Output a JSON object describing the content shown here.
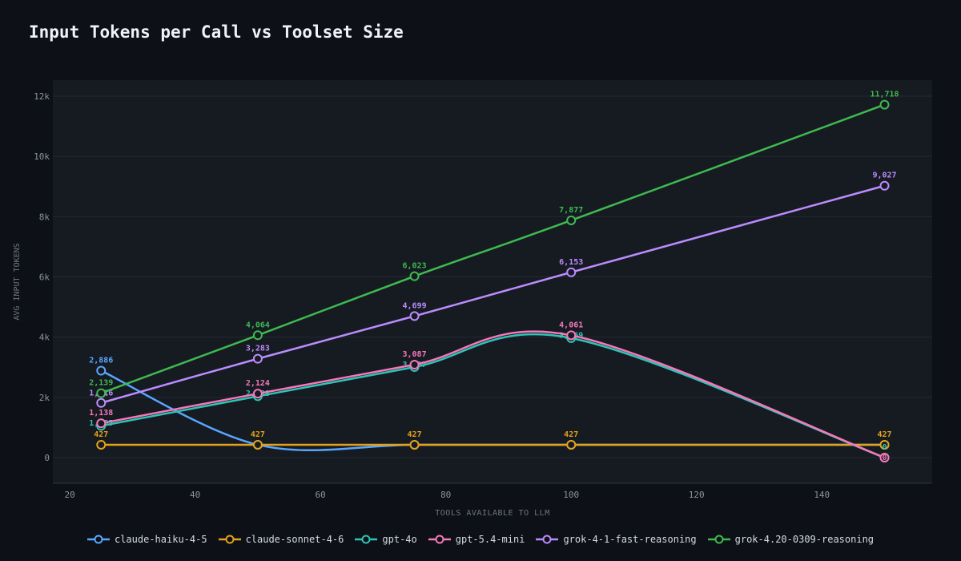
{
  "chart_data": {
    "type": "line",
    "title": "Input Tokens per Call vs Toolset Size",
    "xlabel": "TOOLS AVAILABLE TO LLM",
    "ylabel": "AVG INPUT TOKENS",
    "xlim": [
      17.3,
      157.6
    ],
    "ylim": [
      -851,
      12532
    ],
    "xticks": [
      20,
      40,
      60,
      80,
      100,
      120,
      140
    ],
    "xtick_labels": [
      "20",
      "40",
      "60",
      "80",
      "100",
      "120",
      "140"
    ],
    "yticks": [
      0,
      2000,
      4000,
      6000,
      8000,
      10000,
      12000
    ],
    "ytick_labels": [
      "0",
      "2k",
      "4k",
      "6k",
      "8k",
      "10k",
      "12k"
    ],
    "grid": "horizontal",
    "legend": "bottom",
    "x": [
      25,
      50,
      75,
      100,
      150
    ],
    "series": [
      {
        "name": "claude-haiku-4-5",
        "color": "#58a6ff",
        "values": [
          2886,
          427,
          427,
          427,
          427
        ],
        "labels": [
          "2,886",
          "",
          "",
          "",
          ""
        ]
      },
      {
        "name": "claude-sonnet-4-6",
        "color": "#e3a21a",
        "values": [
          427,
          427,
          427,
          427,
          427
        ],
        "labels": [
          "427",
          "427",
          "427",
          "427",
          "427"
        ]
      },
      {
        "name": "gpt-4o",
        "color": "#2ec4b6",
        "values": [
          1055,
          2038,
          3007,
          3969,
          0
        ],
        "labels": [
          "1,055",
          "2,038",
          "3,007",
          "3,969",
          "0"
        ]
      },
      {
        "name": "gpt-5.4-mini",
        "color": "#f778ba",
        "values": [
          1138,
          2124,
          3087,
          4061,
          0
        ],
        "labels": [
          "1,138",
          "2,124",
          "3,087",
          "4,061",
          "0"
        ]
      },
      {
        "name": "grok-4-1-fast-reasoning",
        "color": "#bc8cff",
        "values": [
          1816,
          3283,
          4699,
          6153,
          9027
        ],
        "labels": [
          "1,816",
          "3,283",
          "4,699",
          "6,153",
          "9,027"
        ]
      },
      {
        "name": "grok-4.20-0309-reasoning",
        "color": "#3fb950",
        "values": [
          2139,
          4064,
          6023,
          7877,
          11718
        ],
        "labels": [
          "2,139",
          "4,064",
          "6,023",
          "7,877",
          "11,718"
        ]
      }
    ]
  }
}
